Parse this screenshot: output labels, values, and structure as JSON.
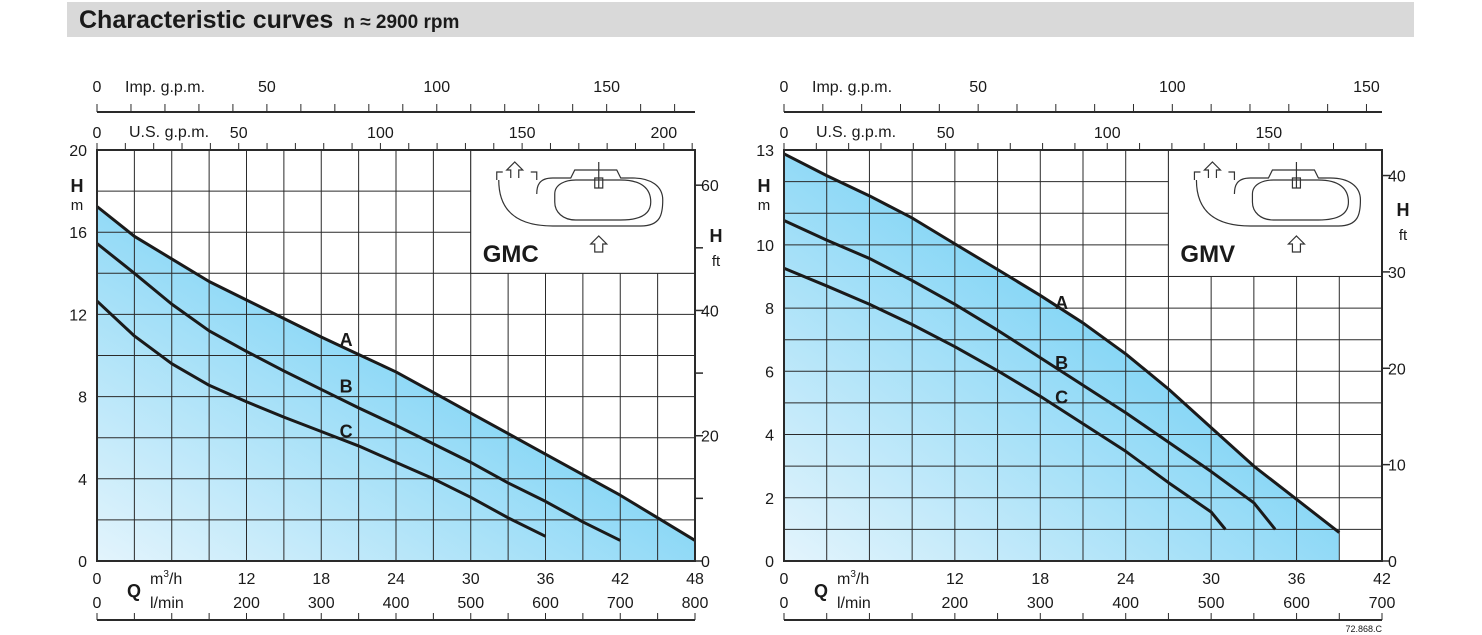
{
  "header": {
    "title": "Characteristic curves",
    "speed": "n ≈ 2900 rpm"
  },
  "footer_code": "72.868.C",
  "colors": {
    "fill_light": "#e3f4fc",
    "fill_dark": "#6acdf4",
    "curve": "#1a1a1a",
    "grid": "#2a2a2a",
    "title_bg": "#d9d9d9"
  },
  "chart_data": [
    {
      "type": "line",
      "title": "GMC",
      "xlabel_symbol": "Q",
      "x_unit": "m³/h",
      "x_unit_base": "m",
      "x_unit_sup": "3",
      "x_unit_tail": "/h",
      "x2_unit": "l/min",
      "ylabel": "H",
      "y_unit": "m",
      "y2_unit": "ft",
      "imp_label": "Imp. g.p.m.",
      "us_label": "U.S. g.p.m.",
      "xlim": [
        0,
        48
      ],
      "ylim": [
        0,
        20
      ],
      "x_ticks": [
        0,
        12,
        18,
        24,
        30,
        36,
        42,
        48
      ],
      "x_grid_step": 3,
      "lmin_ticks": [
        0,
        200,
        300,
        400,
        500,
        600,
        700,
        800
      ],
      "y_ticks": [
        0,
        4,
        8,
        12,
        16,
        20
      ],
      "y_grid_step": 2,
      "ft_ticks": [
        0,
        20,
        40,
        60
      ],
      "ft_minor_step": 10,
      "imp_ticks": [
        0,
        50,
        100,
        150
      ],
      "imp_minor_step": 10,
      "imp_max": 176,
      "us_ticks": [
        0,
        50,
        100,
        150,
        200
      ],
      "us_minor_step": 10,
      "us_max": 211,
      "inset": {
        "x": [
          30,
          48
        ],
        "y": [
          14,
          20
        ]
      },
      "series": [
        {
          "name": "A",
          "label_at": [
            20,
            10.8
          ],
          "x": [
            0,
            3,
            6,
            9,
            12,
            15,
            18,
            21,
            24,
            27,
            30,
            33,
            36,
            39,
            42,
            45,
            48
          ],
          "y": [
            17.25,
            15.8,
            14.7,
            13.6,
            12.7,
            11.8,
            10.9,
            10.05,
            9.2,
            8.2,
            7.2,
            6.2,
            5.2,
            4.2,
            3.2,
            2.1,
            1.0
          ]
        },
        {
          "name": "B",
          "label_at": [
            20,
            8.55
          ],
          "x": [
            0,
            3,
            6,
            9,
            12,
            15,
            18,
            21,
            24,
            27,
            30,
            33,
            36,
            39,
            42
          ],
          "y": [
            15.45,
            14.0,
            12.5,
            11.2,
            10.2,
            9.25,
            8.35,
            7.45,
            6.6,
            5.7,
            4.8,
            3.8,
            2.9,
            1.9,
            1.0
          ]
        },
        {
          "name": "C",
          "label_at": [
            20,
            6.35
          ],
          "x": [
            0,
            3,
            6,
            9,
            12,
            15,
            18,
            21,
            24,
            27,
            30,
            33,
            36
          ],
          "y": [
            12.65,
            10.95,
            9.6,
            8.55,
            7.75,
            7.0,
            6.3,
            5.6,
            4.8,
            4.0,
            3.1,
            2.1,
            1.2
          ]
        }
      ]
    },
    {
      "type": "line",
      "title": "GMV",
      "xlabel_symbol": "Q",
      "x_unit": "m³/h",
      "x_unit_base": "m",
      "x_unit_sup": "3",
      "x_unit_tail": "/h",
      "x2_unit": "l/min",
      "ylabel": "H",
      "y_unit": "m",
      "y2_unit": "ft",
      "imp_label": "Imp. g.p.m.",
      "us_label": "U.S. g.p.m.",
      "xlim": [
        0,
        42
      ],
      "ylim": [
        0,
        13
      ],
      "x_ticks": [
        0,
        12,
        18,
        24,
        30,
        36,
        42
      ],
      "x_grid_step": 3,
      "lmin_ticks": [
        0,
        200,
        300,
        400,
        500,
        600,
        700
      ],
      "y_ticks": [
        0,
        2,
        4,
        6,
        8,
        10,
        13
      ],
      "y_grid_step": 1,
      "ft_ticks": [
        0,
        10,
        20,
        30,
        40
      ],
      "ft_minor_step": 10,
      "imp_ticks": [
        0,
        50,
        100,
        150
      ],
      "imp_minor_step": 10,
      "imp_max": 154,
      "us_ticks": [
        0,
        50,
        100,
        150
      ],
      "us_minor_step": 10,
      "us_max": 185,
      "inset": {
        "x": [
          27,
          42
        ],
        "y": [
          9,
          13
        ]
      },
      "series": [
        {
          "name": "A",
          "label_at": [
            19.5,
            8.2
          ],
          "x": [
            0,
            3,
            6,
            9,
            12,
            15,
            18,
            21,
            24,
            27,
            30,
            33,
            36,
            39
          ],
          "y": [
            12.88,
            12.19,
            11.55,
            10.85,
            10.03,
            9.22,
            8.4,
            7.53,
            6.55,
            5.44,
            4.22,
            3.0,
            1.95,
            0.9
          ]
        },
        {
          "name": "B",
          "label_at": [
            19.5,
            6.3
          ],
          "x": [
            0,
            3,
            6,
            9,
            12,
            15,
            18,
            21,
            24,
            27,
            30,
            33,
            34.5
          ],
          "y": [
            10.77,
            10.15,
            9.57,
            8.87,
            8.12,
            7.3,
            6.43,
            5.56,
            4.69,
            3.76,
            2.83,
            1.84,
            1.0
          ]
        },
        {
          "name": "C",
          "label_at": [
            19.5,
            5.2
          ],
          "x": [
            0,
            3,
            6,
            9,
            12,
            15,
            18,
            21,
            24,
            27,
            30,
            31
          ],
          "y": [
            9.26,
            8.7,
            8.12,
            7.48,
            6.78,
            6.02,
            5.21,
            4.34,
            3.47,
            2.48,
            1.55,
            1.0
          ]
        }
      ]
    }
  ]
}
